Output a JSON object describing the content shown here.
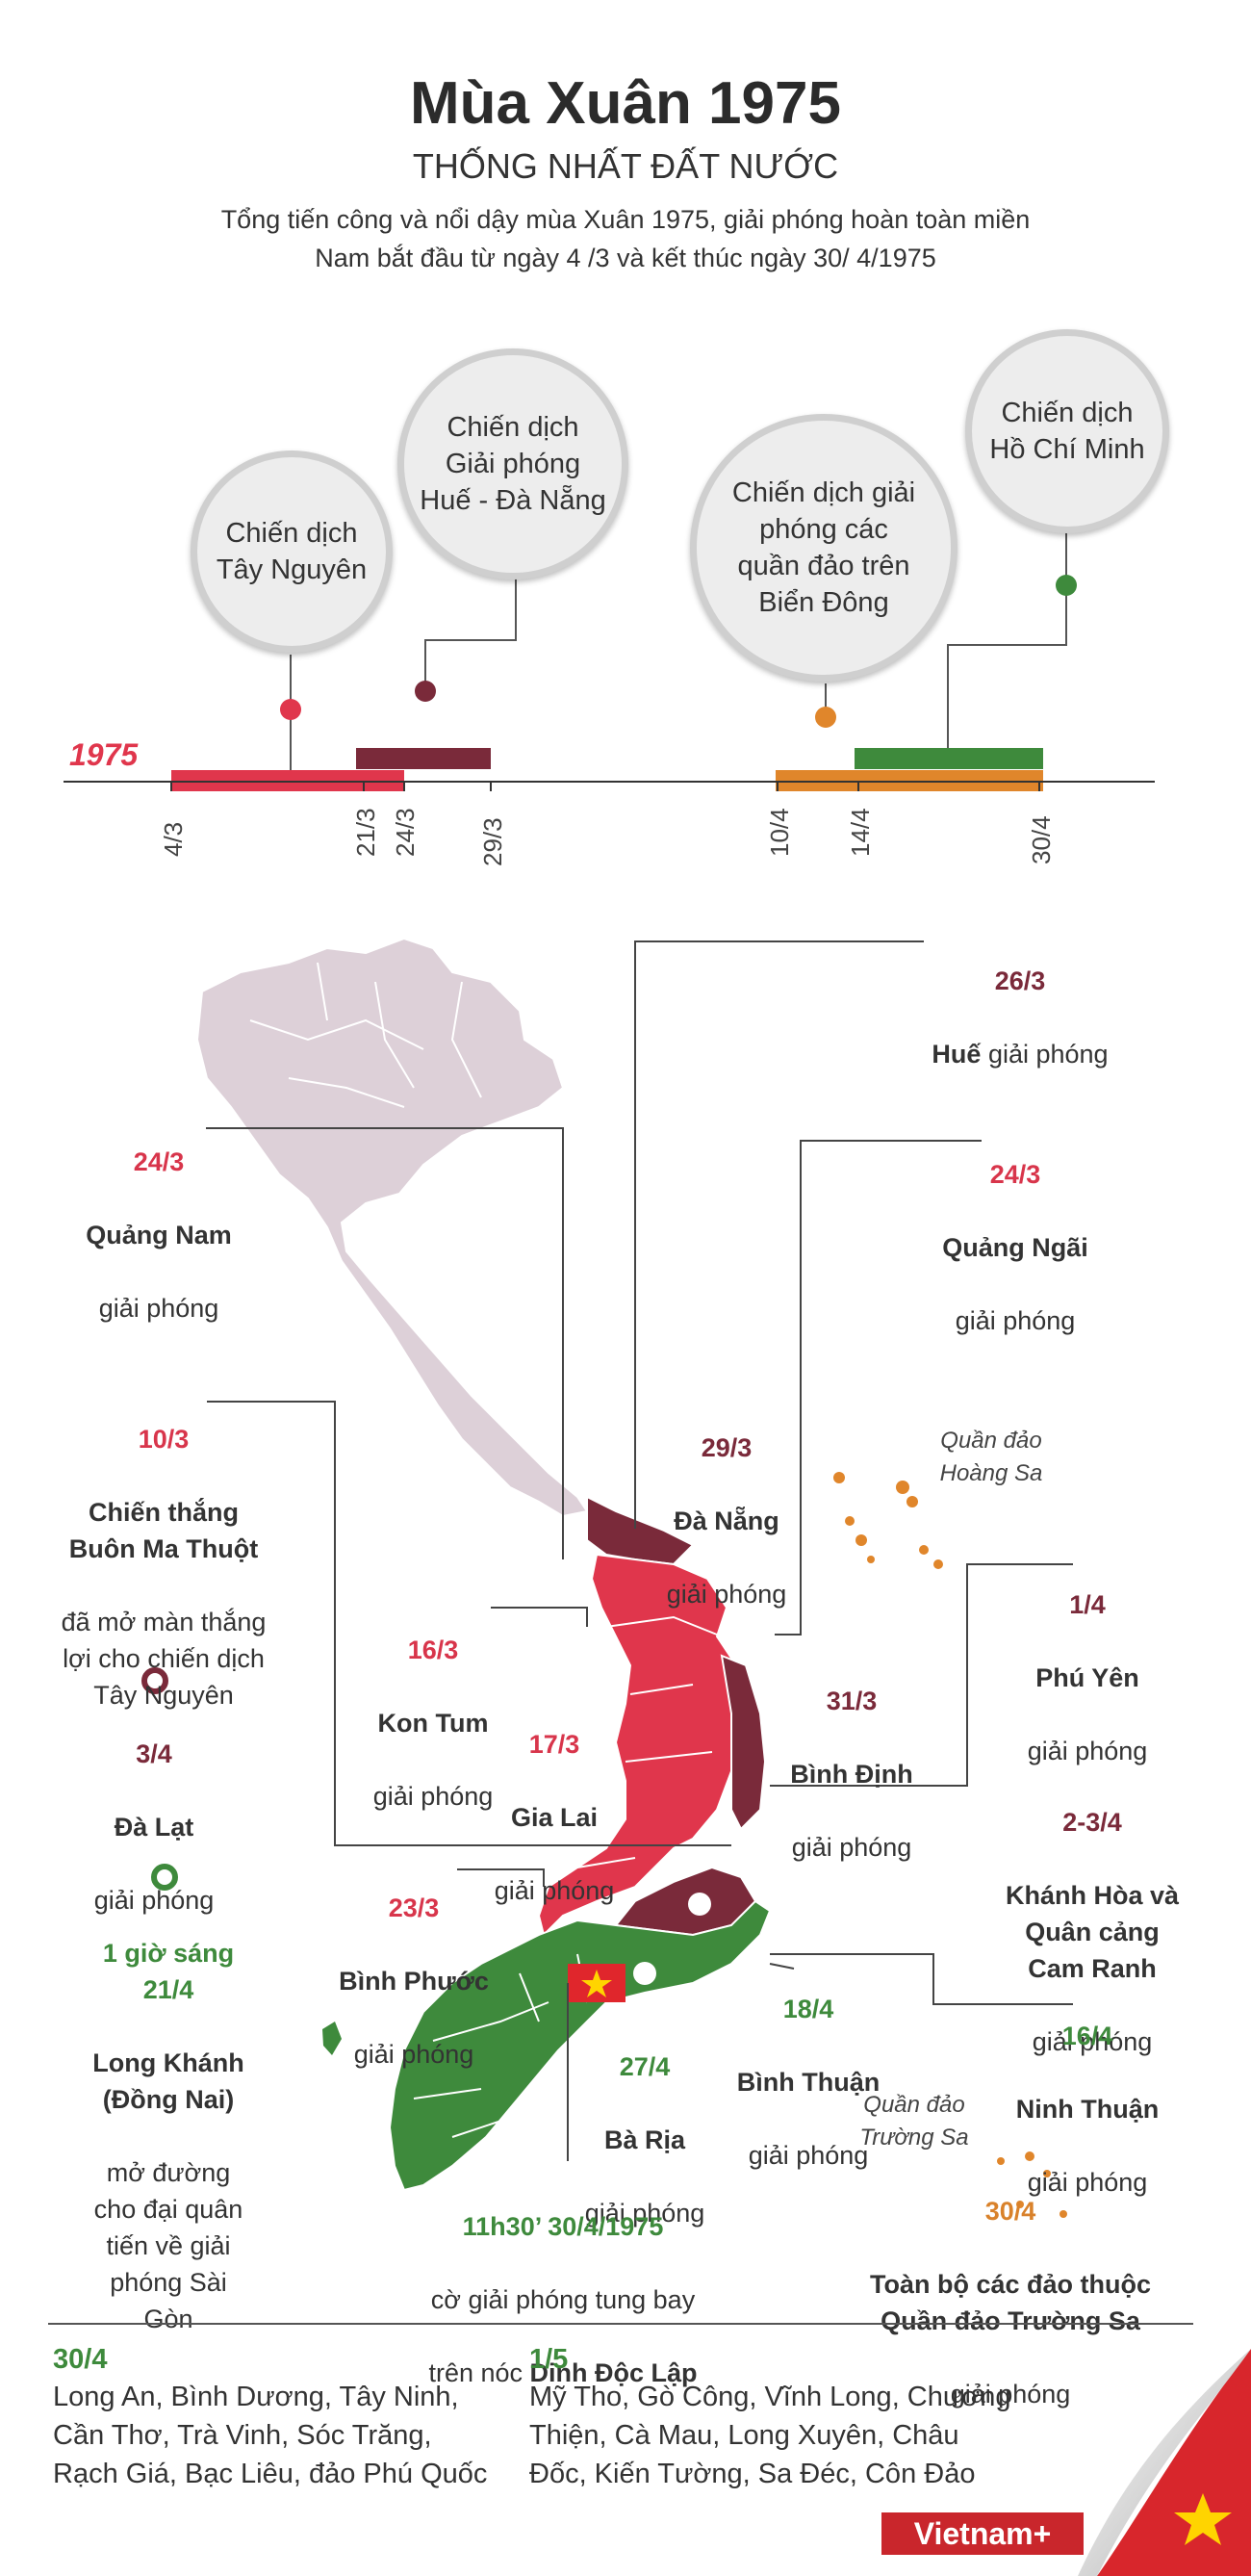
{
  "header": {
    "title": "Mùa Xuân 1975",
    "subtitle": "THỐNG NHẤT ĐẤT NƯỚC",
    "intro": "Tổng tiến công và nổi dậy mùa Xuân 1975, giải phóng hoàn toàn miền Nam bắt đầu từ ngày 4 /3 và kết thúc ngày 30/ 4/1975"
  },
  "timeline": {
    "year": "1975",
    "campaigns": [
      {
        "label": "Chiến dịch\nTây Nguyên",
        "color": "#e0364c"
      },
      {
        "label": "Chiến dịch\nGiải phóng\nHuế - Đà Nẵng",
        "color": "#7a2a3a"
      },
      {
        "label": "Chiến dịch giải\nphóng các\nquần đảo trên\nBiển Đông",
        "color": "#e0862b"
      },
      {
        "label": "Chiến dịch\nHồ Chí Minh",
        "color": "#3e8a3c"
      }
    ],
    "ticks": [
      "4/3",
      "21/3",
      "24/3",
      "29/3",
      "10/4",
      "14/4",
      "30/4"
    ]
  },
  "events": {
    "hue": {
      "date": "26/3",
      "name": "Huế",
      "rest": " giải phóng"
    },
    "quang_nam": {
      "date": "24/3",
      "name": "Quảng Nam",
      "rest": "giải phóng"
    },
    "quang_ngai": {
      "date": "24/3",
      "name": "Quảng Ngãi",
      "rest": "giải phóng"
    },
    "bmt": {
      "date": "10/3",
      "name": "Chiến thắng\nBuôn Ma Thuột",
      "rest": "đã mở màn thắng\nlợi cho chiến dịch\nTây Nguyên"
    },
    "da_nang": {
      "date": "29/3",
      "name": "Đà Nẵng",
      "rest": "giải phóng"
    },
    "hoang_sa": "Quần đảo\nHoàng Sa",
    "phu_yen": {
      "date": "1/4",
      "name": "Phú Yên",
      "rest": "giải phóng"
    },
    "kon_tum": {
      "date": "16/3",
      "name": "Kon Tum",
      "rest": "giải phóng"
    },
    "binh_dinh": {
      "date": "31/3",
      "name": "Bình Định",
      "rest": "giải phóng"
    },
    "gia_lai": {
      "date": "17/3",
      "name": "Gia Lai",
      "rest": "giải phóng"
    },
    "da_lat": {
      "date": "3/4",
      "name": "Đà Lạt",
      "rest": "giải phóng"
    },
    "khanh_hoa": {
      "date": "2-3/4",
      "name": "Khánh Hòa và\nQuân cảng\nCam Ranh",
      "rest": "giải phóng"
    },
    "binh_phuoc": {
      "date": "23/3",
      "name": "Bình Phước",
      "rest": "giải phóng"
    },
    "long_khanh": {
      "date": "1 giờ sáng\n21/4",
      "name": "Long Khánh\n(Đồng Nai)",
      "rest": "mở đường\ncho đại quân\ntiến về giải\nphóng Sài\nGòn"
    },
    "binh_thuan": {
      "date": "18/4",
      "name": "Bình Thuận",
      "rest": "giải phóng"
    },
    "ninh_thuan": {
      "date": "16/4",
      "name": "Ninh Thuận",
      "rest": "giải phóng"
    },
    "ba_ria": {
      "date": "27/4",
      "name": "Bà Rịa",
      "rest": "giải phóng"
    },
    "truong_sa_label": "Quần đảo\nTrường Sa",
    "truong_sa": {
      "date": "30/4",
      "name": "Toàn bộ các đảo thuộc\nQuần đảo Trường Sa",
      "rest": "giải phóng"
    },
    "dinh_doc_lap": {
      "date": "11h30’ 30/4/1975",
      "line1": "cờ giải phóng tung bay",
      "line2a": "trên nóc ",
      "line2b": "Dinh Độc Lập"
    }
  },
  "bottom": {
    "left": {
      "date": "30/4",
      "text": "Long An, Bình Dương, Tây Ninh,\nCần Thơ, Trà Vinh, Sóc Trăng,\nRạch Giá, Bạc Liêu, đảo Phú Quốc"
    },
    "right": {
      "date": "1/5",
      "text": "Mỹ Tho, Gò Công, Vĩnh Long, Chương\nThiện, Cà Mau, Long Xuyên, Châu\nĐốc, Kiến Tường, Sa Đéc, Côn Đảo"
    }
  },
  "brand": "Vietnam+",
  "colors": {
    "red": "#e0364c",
    "brown": "#7a2a3a",
    "green": "#3e8a3c",
    "orange": "#e0862b",
    "north": "#ddd0d8"
  }
}
